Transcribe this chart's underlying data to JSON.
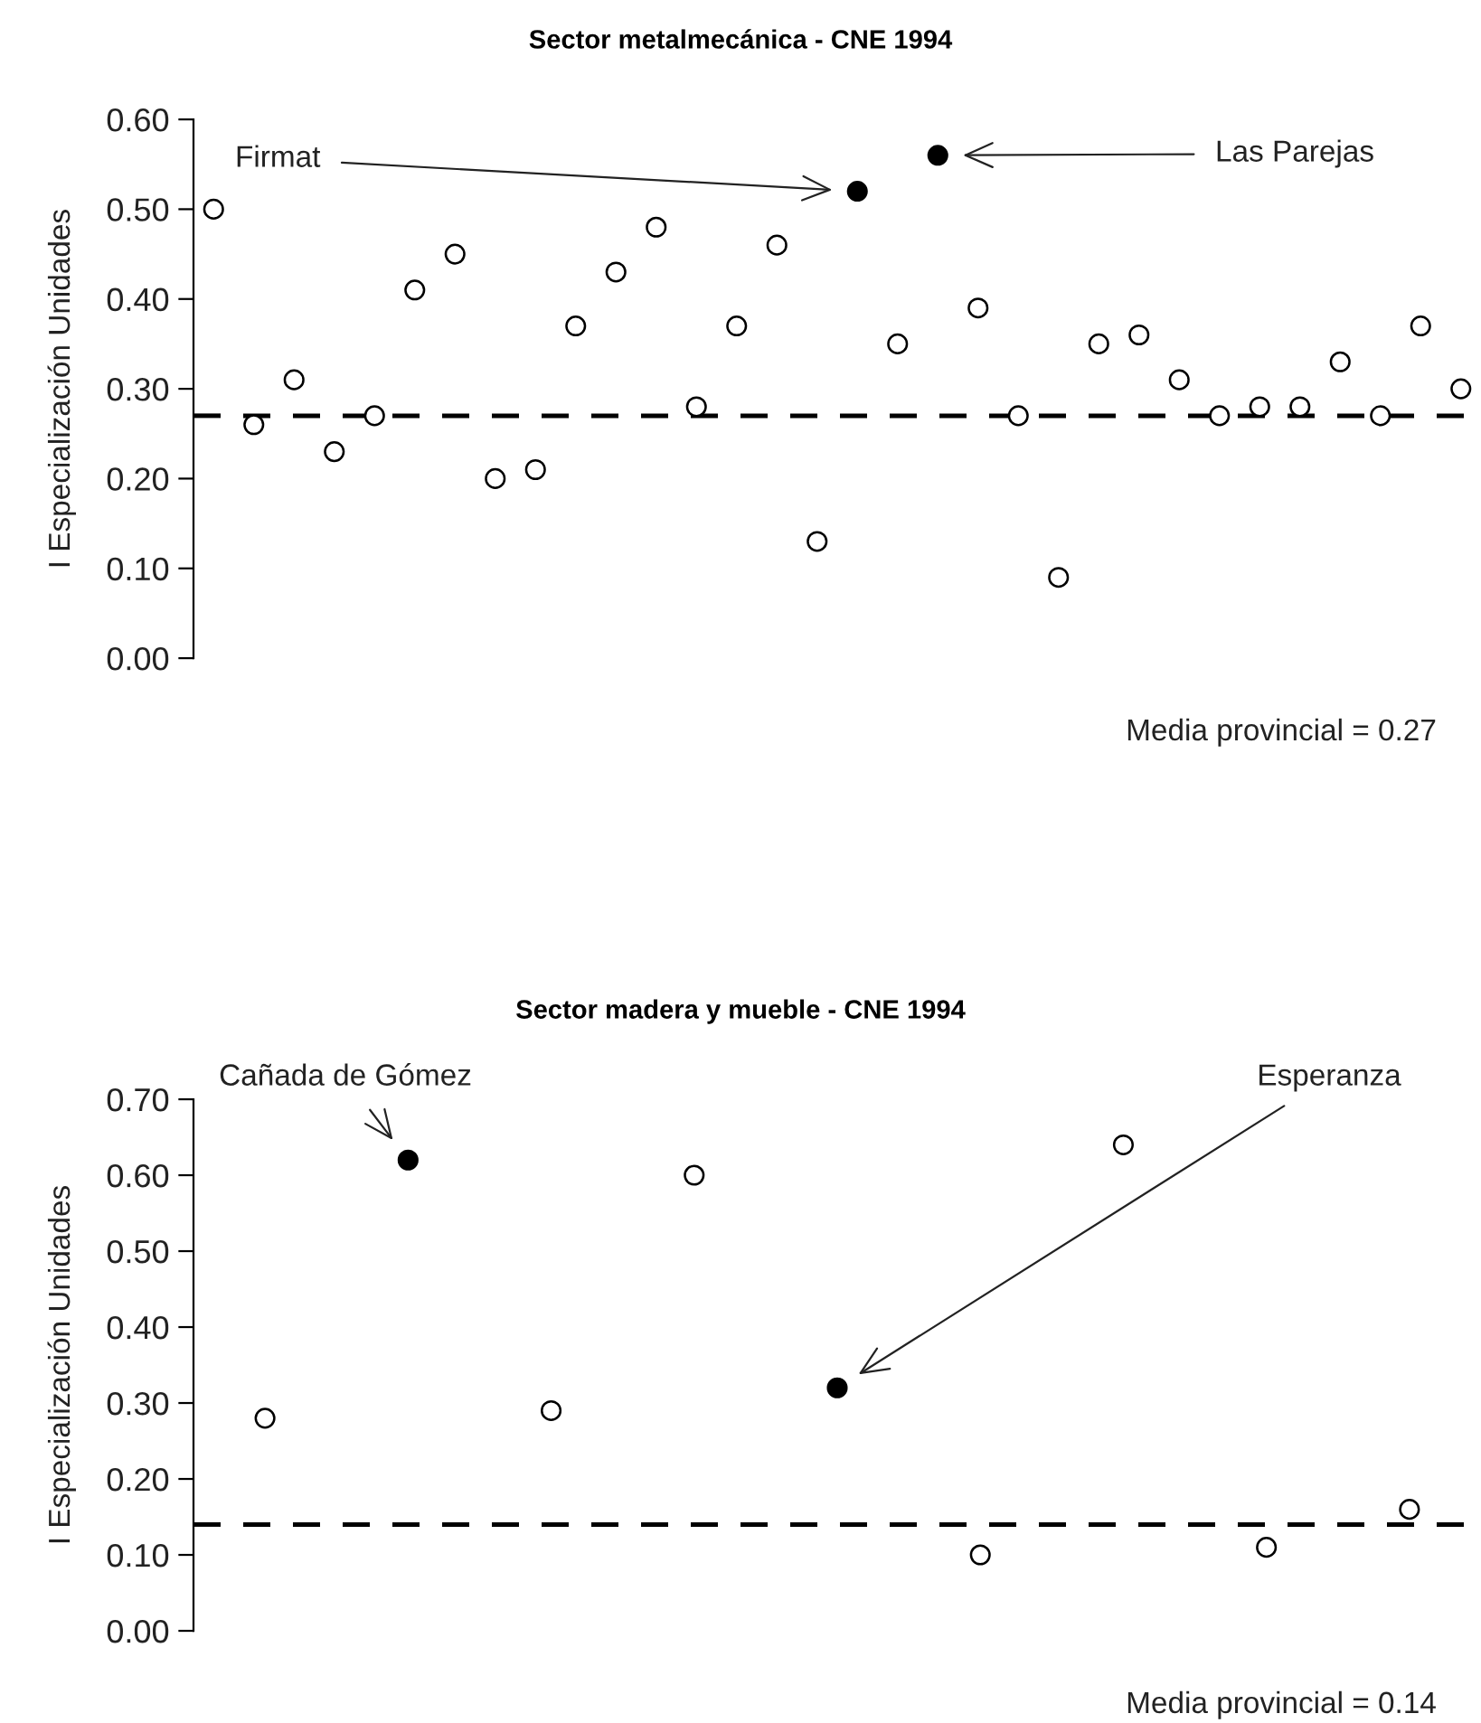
{
  "chart_data": [
    {
      "type": "scatter",
      "title": "Sector metalmecánica - CNE 1994",
      "ylabel": "I Especialización Unidades",
      "categories": [
        null,
        null,
        null,
        null,
        null,
        null,
        null,
        null,
        null,
        null,
        null,
        null,
        null,
        null,
        null,
        null,
        null,
        null,
        null,
        null,
        null,
        null,
        null,
        null,
        null,
        null,
        null,
        null,
        null,
        null,
        null,
        null
      ],
      "values": [
        0.5,
        0.26,
        0.31,
        0.23,
        0.27,
        0.41,
        0.45,
        0.2,
        0.21,
        0.37,
        0.43,
        0.48,
        0.28,
        0.37,
        0.46,
        0.13,
        0.52,
        0.35,
        0.56,
        0.39,
        0.27,
        0.09,
        0.35,
        0.36,
        0.31,
        0.27,
        0.28,
        0.28,
        0.33,
        0.27,
        0.37,
        0.3
      ],
      "colors": [
        "#ffffff",
        "#ffffff",
        "#ffffff",
        "#ffffff",
        "#ffffff",
        "#ffffff",
        "#ffffff",
        "#ffffff",
        "#ffffff",
        "#ffffff",
        "#ffffff",
        "#ffffff",
        "#ffffff",
        "#ffffff",
        "#ffffff",
        "#ffffff",
        "#000000",
        "#ffffff",
        "#000000",
        "#ffffff",
        "#ffffff",
        "#ffffff",
        "#ffffff",
        "#ffffff",
        "#ffffff",
        "#ffffff",
        "#ffffff",
        "#ffffff",
        "#ffffff",
        "#ffffff",
        "#ffffff",
        "#ffffff"
      ],
      "ylim": [
        0,
        0.6
      ],
      "yticks": [
        {
          "value": 0,
          "label": "0.00"
        },
        {
          "value": 0.1,
          "label": "0.10"
        },
        {
          "value": 0.2,
          "label": "0.20"
        },
        {
          "value": 0.3,
          "label": "0.30"
        },
        {
          "value": 0.4,
          "label": "0.40"
        },
        {
          "value": 0.5,
          "label": "0.50"
        },
        {
          "value": 0.6,
          "label": "0.60"
        }
      ],
      "tick_labels": "y",
      "marker": "circle",
      "grid": false,
      "legend": false,
      "ref_lines": [
        {
          "axis": "y",
          "value": 0.27,
          "label": "Media provincial = 0.27",
          "color": "#000000",
          "line_style": "dashed"
        }
      ],
      "annotations": [
        "Firmat",
        "Las Parejas"
      ]
    },
    {
      "type": "scatter",
      "title": "Sector madera y mueble - CNE 1994",
      "ylabel": "I Especialización Unidades",
      "categories": [
        null,
        null,
        null,
        null,
        null,
        null,
        null,
        null,
        null
      ],
      "values": [
        0.28,
        0.62,
        0.29,
        0.6,
        0.32,
        0.1,
        0.64,
        0.11,
        0.16
      ],
      "colors": [
        "#ffffff",
        "#000000",
        "#ffffff",
        "#ffffff",
        "#000000",
        "#ffffff",
        "#ffffff",
        "#ffffff",
        "#ffffff"
      ],
      "ylim": [
        0,
        0.7
      ],
      "yticks": [
        {
          "value": 0,
          "label": "0.00"
        },
        {
          "value": 0.1,
          "label": "0.10"
        },
        {
          "value": 0.2,
          "label": "0.20"
        },
        {
          "value": 0.3,
          "label": "0.30"
        },
        {
          "value": 0.4,
          "label": "0.40"
        },
        {
          "value": 0.5,
          "label": "0.50"
        },
        {
          "value": 0.6,
          "label": "0.60"
        },
        {
          "value": 0.7,
          "label": "0.70"
        }
      ],
      "tick_labels": "y",
      "marker": "circle",
      "grid": false,
      "legend": false,
      "ref_lines": [
        {
          "axis": "y",
          "value": 0.14,
          "label": "Media provincial = 0.14",
          "color": "#000000",
          "line_style": "dashed"
        }
      ],
      "annotations": [
        "Cañada de Gómez",
        "Esperanza"
      ]
    }
  ]
}
